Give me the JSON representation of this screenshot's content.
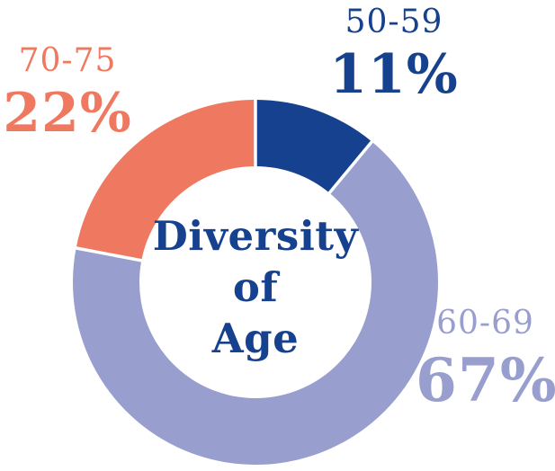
{
  "chart_data": {
    "type": "pie",
    "subtype": "donut",
    "title": "Diversity of Age",
    "title_color": "#15418e",
    "center_label_lines": [
      "Diversity",
      "of",
      "Age"
    ],
    "start_angle_deg": 0,
    "direction": "clockwise",
    "legend_position": "outside-callouts",
    "separator_color": "#ffffff",
    "background_color": "#ffffff",
    "segments": [
      {
        "label": "50-59",
        "value": 11,
        "display": "11%",
        "color": "#15418e"
      },
      {
        "label": "60-69",
        "value": 67,
        "display": "67%",
        "color": "#989ecd"
      },
      {
        "label": "70-75",
        "value": 22,
        "display": "22%",
        "color": "#ef7960"
      }
    ]
  }
}
